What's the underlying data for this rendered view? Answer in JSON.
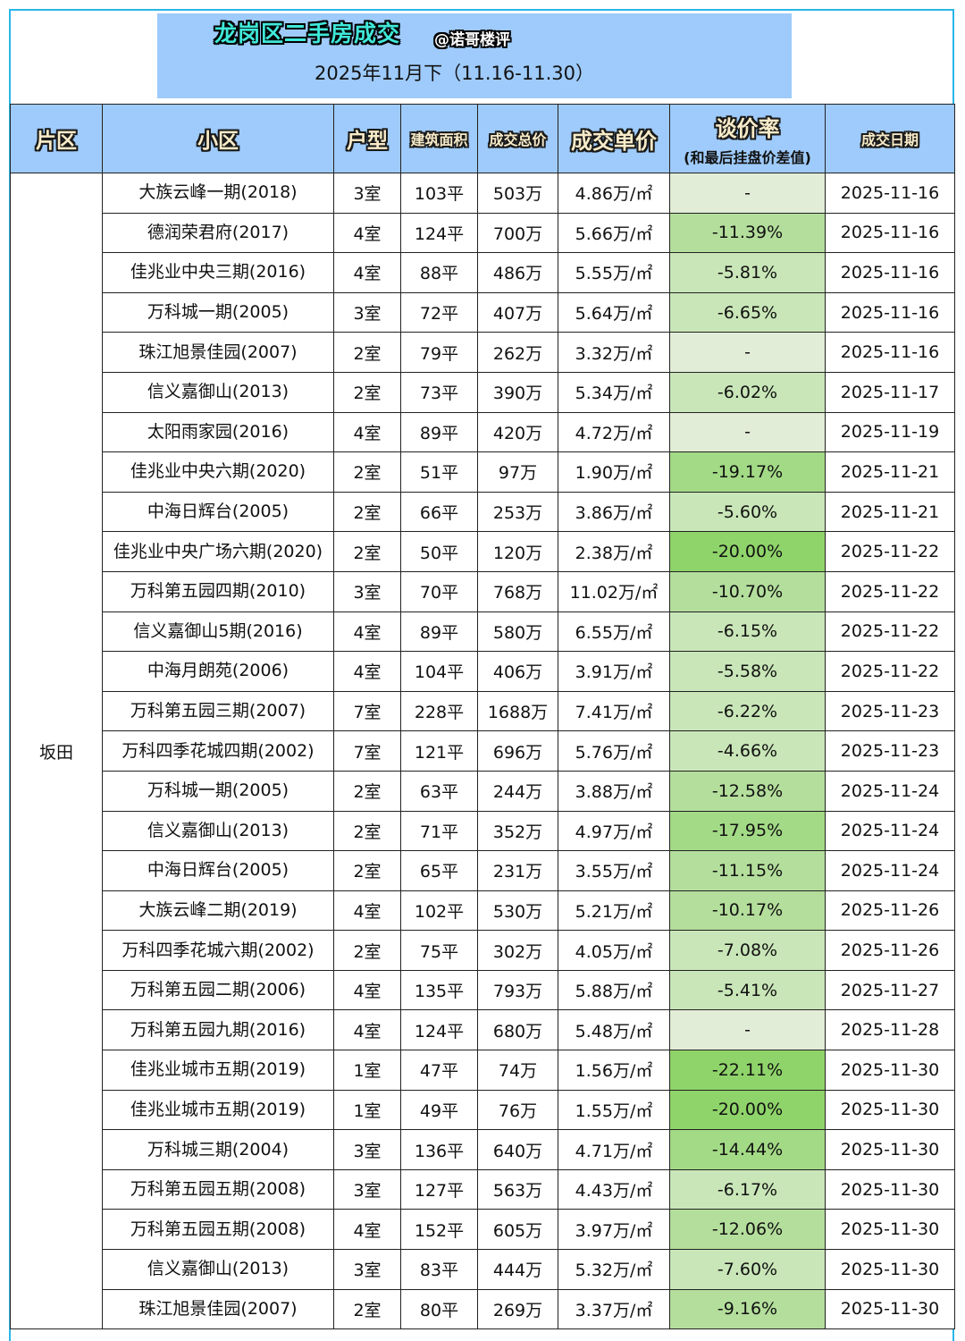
{
  "header": {
    "title": "龙岗区二手房成交",
    "handle": "@诺哥楼评",
    "period": "2025年11月下（11.16-11.30）"
  },
  "columns": {
    "district": "片区",
    "community": "小区",
    "layout": "户型",
    "area": "建筑面积",
    "total_price": "成交总价",
    "unit_price": "成交单价",
    "discount": "谈价率",
    "discount_note": "(和最后挂盘价差值)",
    "date": "成交日期"
  },
  "district": "坂田",
  "colors": {
    "frame": "#29b6e8",
    "header_bg": "#9ecbfb",
    "title_text": "#3fe8d9",
    "rate_none": "#e2edd7",
    "rate_light": "#c9e6b8",
    "rate_mid": "#b4de9c",
    "rate_strong": "#a3da86",
    "rate_max": "#8fd46a"
  },
  "rows": [
    {
      "community": "大族云峰一期(2018)",
      "layout": "3室",
      "area": "103平",
      "total": "503万",
      "unit": "4.86万/㎡",
      "rate": "-",
      "date": "2025-11-16"
    },
    {
      "community": "德润荣君府(2017)",
      "layout": "4室",
      "area": "124平",
      "total": "700万",
      "unit": "5.66万/㎡",
      "rate": "-11.39%",
      "date": "2025-11-16"
    },
    {
      "community": "佳兆业中央三期(2016)",
      "layout": "4室",
      "area": "88平",
      "total": "486万",
      "unit": "5.55万/㎡",
      "rate": "-5.81%",
      "date": "2025-11-16"
    },
    {
      "community": "万科城一期(2005)",
      "layout": "3室",
      "area": "72平",
      "total": "407万",
      "unit": "5.64万/㎡",
      "rate": "-6.65%",
      "date": "2025-11-16"
    },
    {
      "community": "珠江旭景佳园(2007)",
      "layout": "2室",
      "area": "79平",
      "total": "262万",
      "unit": "3.32万/㎡",
      "rate": "-",
      "date": "2025-11-16"
    },
    {
      "community": "信义嘉御山(2013)",
      "layout": "2室",
      "area": "73平",
      "total": "390万",
      "unit": "5.34万/㎡",
      "rate": "-6.02%",
      "date": "2025-11-17"
    },
    {
      "community": "太阳雨家园(2016)",
      "layout": "4室",
      "area": "89平",
      "total": "420万",
      "unit": "4.72万/㎡",
      "rate": "-",
      "date": "2025-11-19"
    },
    {
      "community": "佳兆业中央六期(2020)",
      "layout": "2室",
      "area": "51平",
      "total": "97万",
      "unit": "1.90万/㎡",
      "rate": "-19.17%",
      "date": "2025-11-21"
    },
    {
      "community": "中海日辉台(2005)",
      "layout": "2室",
      "area": "66平",
      "total": "253万",
      "unit": "3.86万/㎡",
      "rate": "-5.60%",
      "date": "2025-11-21"
    },
    {
      "community": "佳兆业中央广场六期(2020)",
      "layout": "2室",
      "area": "50平",
      "total": "120万",
      "unit": "2.38万/㎡",
      "rate": "-20.00%",
      "date": "2025-11-22"
    },
    {
      "community": "万科第五园四期(2010)",
      "layout": "3室",
      "area": "70平",
      "total": "768万",
      "unit": "11.02万/㎡",
      "rate": "-10.70%",
      "date": "2025-11-22"
    },
    {
      "community": "信义嘉御山5期(2016)",
      "layout": "4室",
      "area": "89平",
      "total": "580万",
      "unit": "6.55万/㎡",
      "rate": "-6.15%",
      "date": "2025-11-22"
    },
    {
      "community": "中海月朗苑(2006)",
      "layout": "4室",
      "area": "104平",
      "total": "406万",
      "unit": "3.91万/㎡",
      "rate": "-5.58%",
      "date": "2025-11-22"
    },
    {
      "community": "万科第五园三期(2007)",
      "layout": "7室",
      "area": "228平",
      "total": "1688万",
      "unit": "7.41万/㎡",
      "rate": "-6.22%",
      "date": "2025-11-23"
    },
    {
      "community": "万科四季花城四期(2002)",
      "layout": "7室",
      "area": "121平",
      "total": "696万",
      "unit": "5.76万/㎡",
      "rate": "-4.66%",
      "date": "2025-11-23"
    },
    {
      "community": "万科城一期(2005)",
      "layout": "2室",
      "area": "63平",
      "total": "244万",
      "unit": "3.88万/㎡",
      "rate": "-12.58%",
      "date": "2025-11-24"
    },
    {
      "community": "信义嘉御山(2013)",
      "layout": "2室",
      "area": "71平",
      "total": "352万",
      "unit": "4.97万/㎡",
      "rate": "-17.95%",
      "date": "2025-11-24"
    },
    {
      "community": "中海日辉台(2005)",
      "layout": "2室",
      "area": "65平",
      "total": "231万",
      "unit": "3.55万/㎡",
      "rate": "-11.15%",
      "date": "2025-11-24"
    },
    {
      "community": "大族云峰二期(2019)",
      "layout": "4室",
      "area": "102平",
      "total": "530万",
      "unit": "5.21万/㎡",
      "rate": "-10.17%",
      "date": "2025-11-26"
    },
    {
      "community": "万科四季花城六期(2002)",
      "layout": "2室",
      "area": "75平",
      "total": "302万",
      "unit": "4.05万/㎡",
      "rate": "-7.08%",
      "date": "2025-11-26"
    },
    {
      "community": "万科第五园二期(2006)",
      "layout": "4室",
      "area": "135平",
      "total": "793万",
      "unit": "5.88万/㎡",
      "rate": "-5.41%",
      "date": "2025-11-27"
    },
    {
      "community": "万科第五园九期(2016)",
      "layout": "4室",
      "area": "124平",
      "total": "680万",
      "unit": "5.48万/㎡",
      "rate": "-",
      "date": "2025-11-28"
    },
    {
      "community": "佳兆业城市五期(2019)",
      "layout": "1室",
      "area": "47平",
      "total": "74万",
      "unit": "1.56万/㎡",
      "rate": "-22.11%",
      "date": "2025-11-30"
    },
    {
      "community": "佳兆业城市五期(2019)",
      "layout": "1室",
      "area": "49平",
      "total": "76万",
      "unit": "1.55万/㎡",
      "rate": "-20.00%",
      "date": "2025-11-30"
    },
    {
      "community": "万科城三期(2004)",
      "layout": "3室",
      "area": "136平",
      "total": "640万",
      "unit": "4.71万/㎡",
      "rate": "-14.44%",
      "date": "2025-11-30"
    },
    {
      "community": "万科第五园五期(2008)",
      "layout": "3室",
      "area": "127平",
      "total": "563万",
      "unit": "4.43万/㎡",
      "rate": "-6.17%",
      "date": "2025-11-30"
    },
    {
      "community": "万科第五园五期(2008)",
      "layout": "4室",
      "area": "152平",
      "total": "605万",
      "unit": "3.97万/㎡",
      "rate": "-12.06%",
      "date": "2025-11-30"
    },
    {
      "community": "信义嘉御山(2013)",
      "layout": "3室",
      "area": "83平",
      "total": "444万",
      "unit": "5.32万/㎡",
      "rate": "-7.60%",
      "date": "2025-11-30"
    },
    {
      "community": "珠江旭景佳园(2007)",
      "layout": "2室",
      "area": "80平",
      "total": "269万",
      "unit": "3.37万/㎡",
      "rate": "-9.16%",
      "date": "2025-11-30"
    }
  ]
}
